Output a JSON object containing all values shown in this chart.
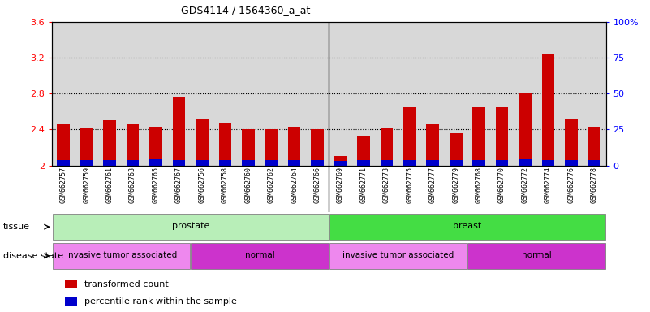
{
  "title": "GDS4114 / 1564360_a_at",
  "samples": [
    "GSM662757",
    "GSM662759",
    "GSM662761",
    "GSM662763",
    "GSM662765",
    "GSM662767",
    "GSM662756",
    "GSM662758",
    "GSM662760",
    "GSM662762",
    "GSM662764",
    "GSM662766",
    "GSM662769",
    "GSM662771",
    "GSM662773",
    "GSM662775",
    "GSM662777",
    "GSM662779",
    "GSM662768",
    "GSM662770",
    "GSM662772",
    "GSM662774",
    "GSM662776",
    "GSM662778"
  ],
  "red_values": [
    2.46,
    2.42,
    2.5,
    2.47,
    2.43,
    2.77,
    2.51,
    2.48,
    2.4,
    2.4,
    2.43,
    2.4,
    2.1,
    2.33,
    2.42,
    2.65,
    2.46,
    2.36,
    2.65,
    2.65,
    2.8,
    3.25,
    2.52,
    2.43
  ],
  "blue_heights": [
    0.055,
    0.062,
    0.062,
    0.058,
    0.068,
    0.062,
    0.062,
    0.058,
    0.058,
    0.058,
    0.055,
    0.058,
    0.048,
    0.055,
    0.058,
    0.062,
    0.055,
    0.055,
    0.058,
    0.062,
    0.065,
    0.058,
    0.058,
    0.058
  ],
  "ymin": 2.0,
  "ymax": 3.6,
  "yticks": [
    2.0,
    2.4,
    2.8,
    3.2,
    3.6
  ],
  "ytick_labels_left": [
    "2",
    "2.4",
    "2.8",
    "3.2",
    "3.6"
  ],
  "ytick_labels_right": [
    "0",
    "25",
    "50",
    "75",
    "100%"
  ],
  "bar_color_red": "#cc0000",
  "bar_color_blue": "#0000cc",
  "tissue_groups": [
    {
      "label": "prostate",
      "start": 0,
      "end": 12,
      "color": "#b8eeb8"
    },
    {
      "label": "breast",
      "start": 12,
      "end": 24,
      "color": "#44dd44"
    }
  ],
  "disease_groups": [
    {
      "label": "invasive tumor associated",
      "start": 0,
      "end": 6,
      "color": "#ee88ee"
    },
    {
      "label": "normal",
      "start": 6,
      "end": 12,
      "color": "#cc33cc"
    },
    {
      "label": "invasive tumor associated",
      "start": 12,
      "end": 18,
      "color": "#ee88ee"
    },
    {
      "label": "normal",
      "start": 18,
      "end": 24,
      "color": "#cc33cc"
    }
  ],
  "legend_items": [
    {
      "label": "transformed count",
      "color": "#cc0000"
    },
    {
      "label": "percentile rank within the sample",
      "color": "#0000cc"
    }
  ],
  "bg_color": "#ffffff",
  "plot_bg": "#d8d8d8",
  "bar_width": 0.55,
  "grid_yticks": [
    2.4,
    2.8,
    3.2
  ]
}
